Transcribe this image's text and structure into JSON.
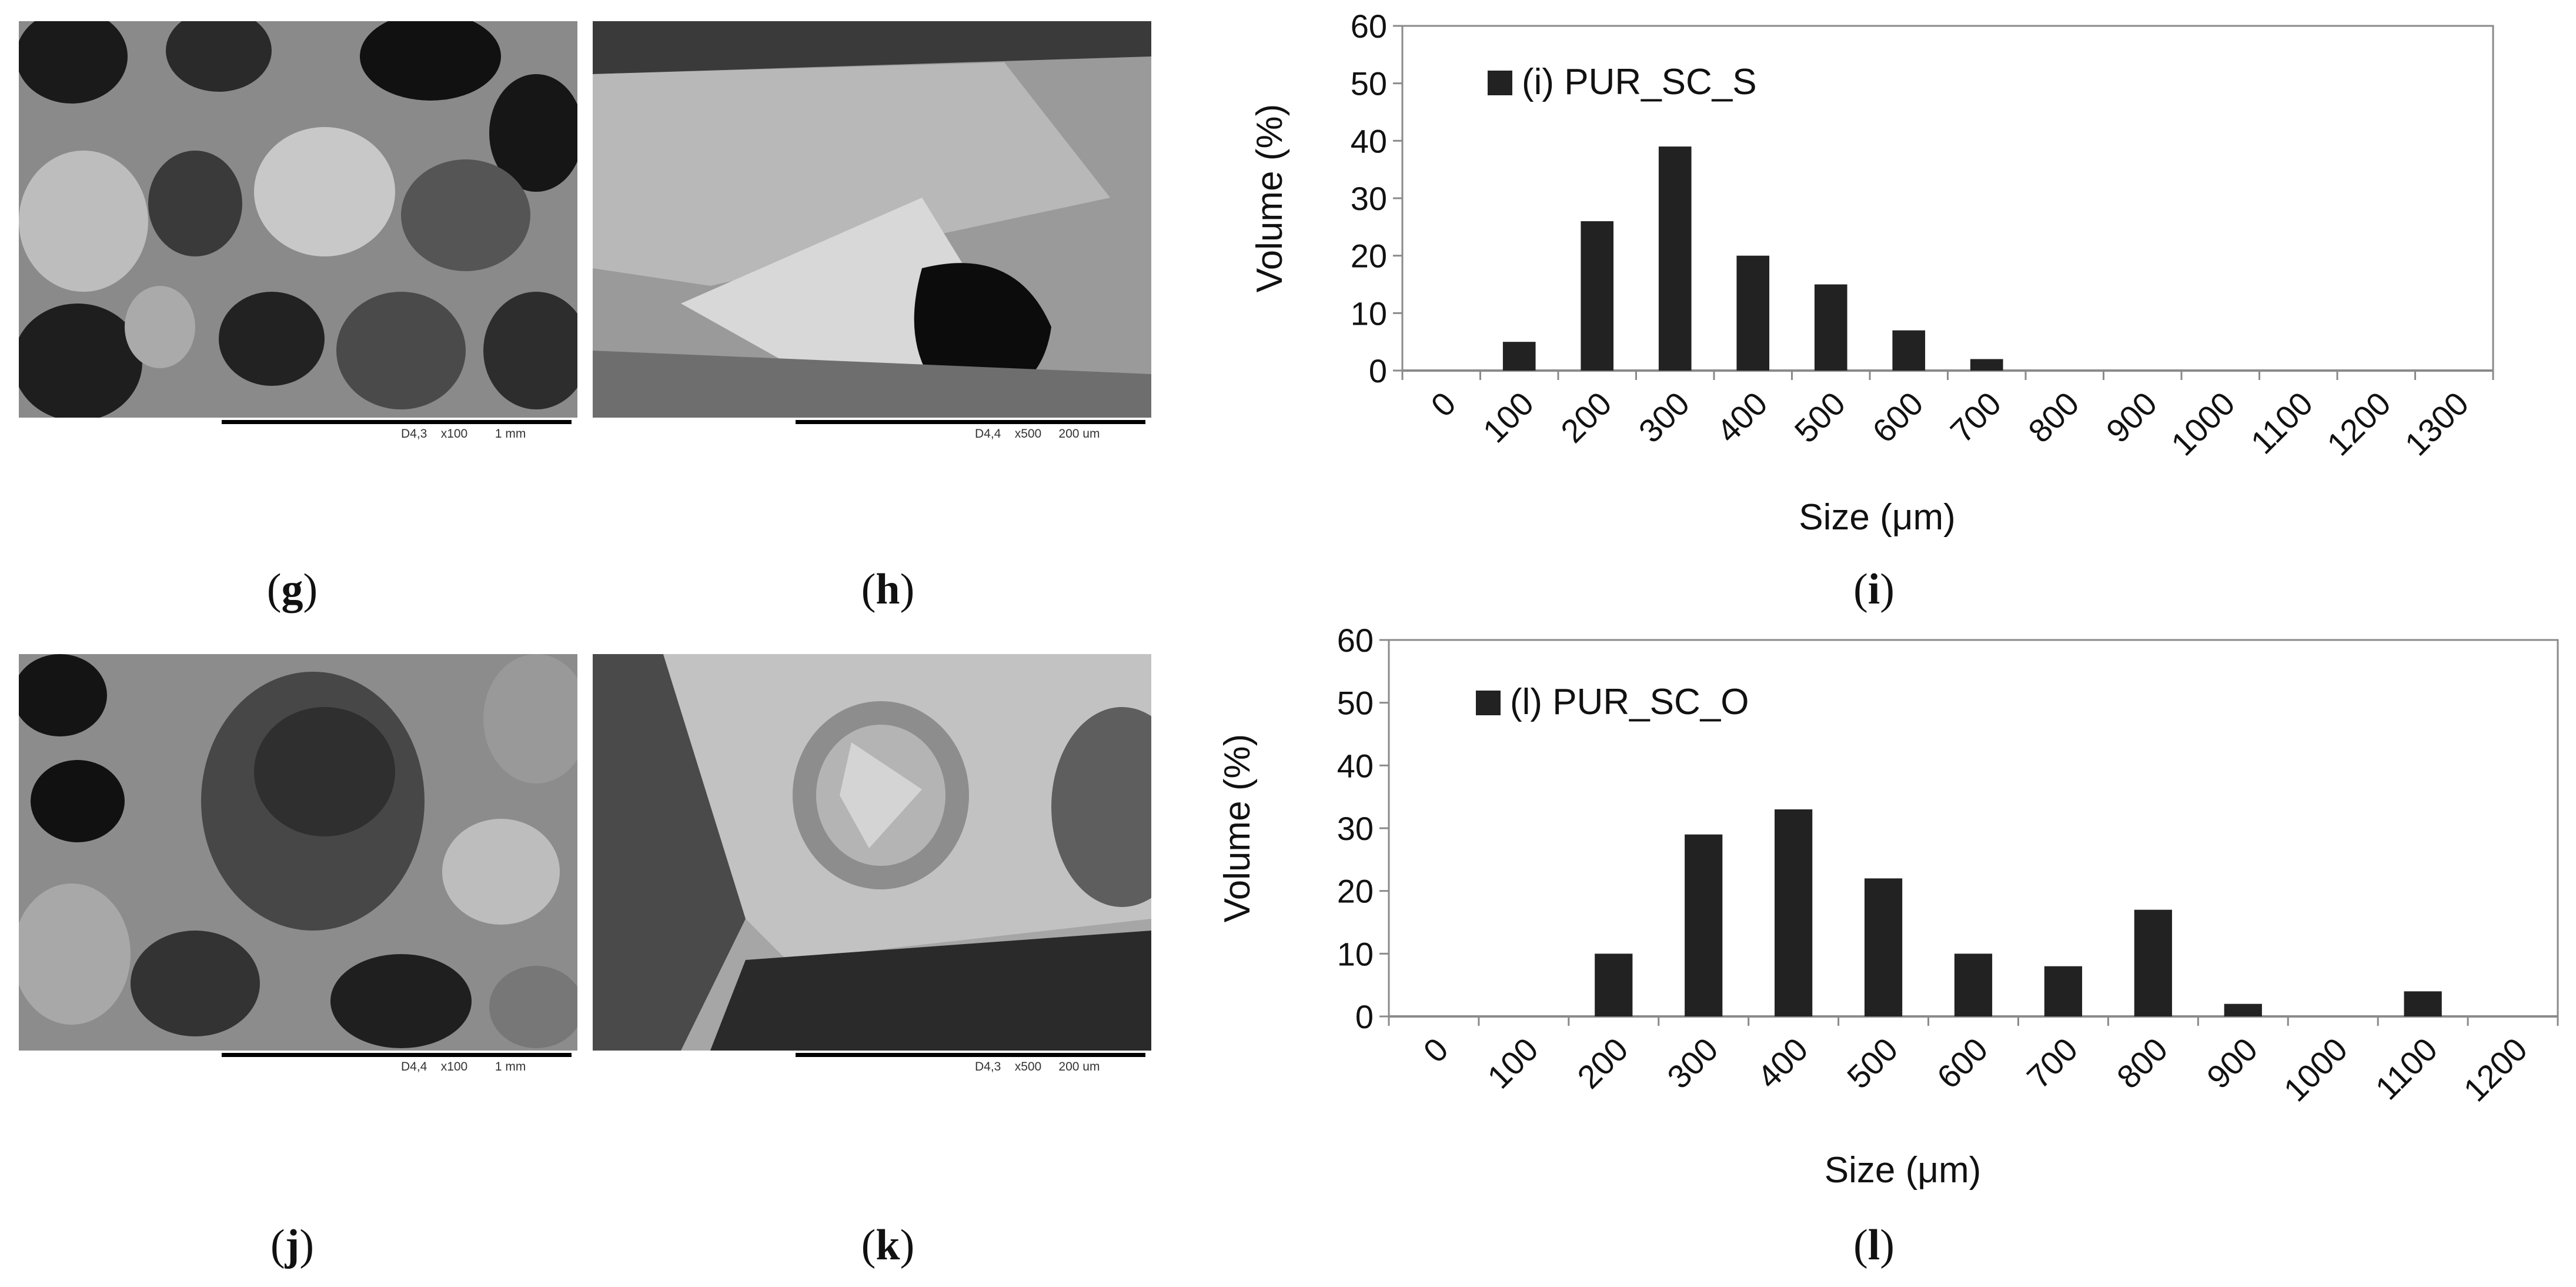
{
  "figure": {
    "panels": [
      {
        "id": "g",
        "caption_letter": "g",
        "meta": "D4,3    x100        1 mm"
      },
      {
        "id": "h",
        "caption_letter": "h",
        "meta": "D4,4    x500     200 um"
      },
      {
        "id": "j",
        "caption_letter": "j",
        "meta": "D4,4    x100        1 mm"
      },
      {
        "id": "k",
        "caption_letter": "k",
        "meta": "D4,3    x500     200 um"
      }
    ],
    "chart_captions": {
      "i": "i",
      "l": "l"
    }
  },
  "chart_data": [
    {
      "type": "bar",
      "title": "",
      "xlabel": "Size (μm)",
      "ylabel": "Volume (%)",
      "ylim": [
        0,
        60
      ],
      "yticks": [
        "0",
        "10",
        "20",
        "30",
        "40",
        "50",
        "60"
      ],
      "categories": [
        "0",
        "100",
        "200",
        "300",
        "400",
        "500",
        "600",
        "700",
        "800",
        "900",
        "1000",
        "1100",
        "1200",
        "1300"
      ],
      "series": [
        {
          "name": "(i) PUR_SC_S",
          "values": [
            0,
            5,
            26,
            39,
            20,
            15,
            7,
            2,
            0,
            0,
            0,
            0,
            0,
            0
          ]
        }
      ],
      "legend": "top-left",
      "grid": false,
      "bar_color": "#222222"
    },
    {
      "type": "bar",
      "title": "",
      "xlabel": "Size (μm)",
      "ylabel": "Volume (%)",
      "ylim": [
        0,
        60
      ],
      "yticks": [
        "0",
        "10",
        "20",
        "30",
        "40",
        "50",
        "60"
      ],
      "categories": [
        "0",
        "100",
        "200",
        "300",
        "400",
        "500",
        "600",
        "700",
        "800",
        "900",
        "1000",
        "1100",
        "1200"
      ],
      "series": [
        {
          "name": "(l) PUR_SC_O",
          "values": [
            0,
            0,
            10,
            29,
            33,
            22,
            10,
            8,
            17,
            2,
            0,
            4,
            0
          ]
        }
      ],
      "legend": "top-left",
      "grid": false,
      "bar_color": "#222222"
    }
  ]
}
